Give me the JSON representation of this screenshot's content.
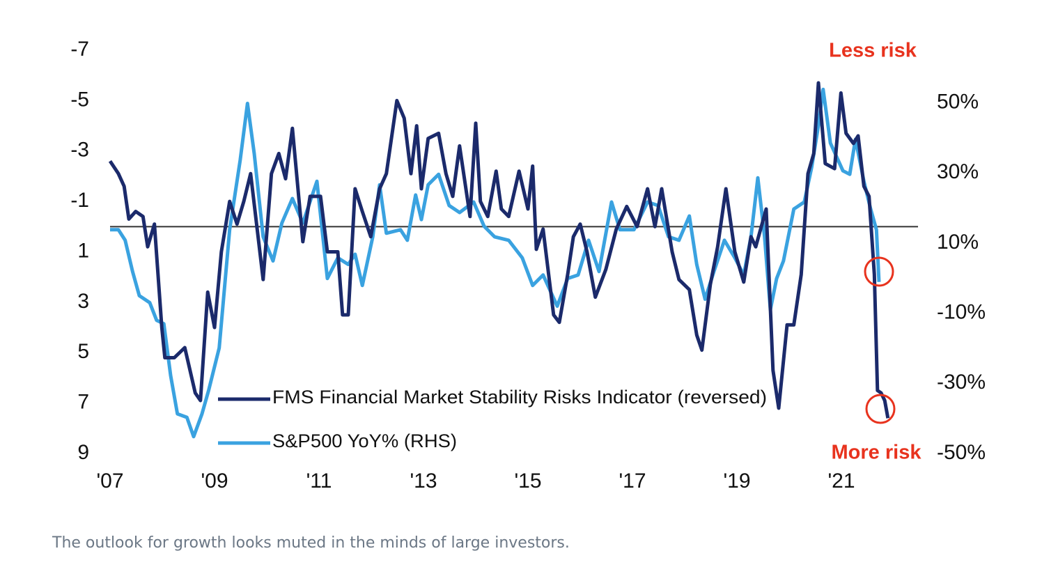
{
  "caption": "The outlook for growth looks muted in the minds of large investors.",
  "chart_data": {
    "type": "line",
    "annotations": [
      "Less risk",
      "More risk"
    ],
    "xlim": [
      2007,
      2022.5
    ],
    "xticks": [
      {
        "value": 2007,
        "label": "'07"
      },
      {
        "value": 2009,
        "label": "'09"
      },
      {
        "value": 2011,
        "label": "'11"
      },
      {
        "value": 2013,
        "label": "'13"
      },
      {
        "value": 2015,
        "label": "'15"
      },
      {
        "value": 2017,
        "label": "'17"
      },
      {
        "value": 2019,
        "label": "'19"
      },
      {
        "value": 2021,
        "label": "'21"
      }
    ],
    "ylim": [
      9,
      -7
    ],
    "yticks": [
      -7,
      -5,
      -3,
      -1,
      1,
      3,
      5,
      7,
      9
    ],
    "y2lim": [
      -50,
      65
    ],
    "y2ticks": [
      {
        "value": 50,
        "label": "50%"
      },
      {
        "value": 30,
        "label": "30%"
      },
      {
        "value": 10,
        "label": "10%"
      },
      {
        "value": -10,
        "label": "-10%"
      },
      {
        "value": -30,
        "label": "-30%"
      },
      {
        "value": -50,
        "label": "-50%"
      }
    ],
    "reference_line": 0,
    "series": [
      {
        "name": "FMS Financial Market Stability Risks Indicator (reversed)",
        "color": "#1b2a6b",
        "x": [
          2007.0,
          2007.16,
          2007.27,
          2007.36,
          2007.49,
          2007.63,
          2007.72,
          2007.85,
          2007.99,
          2008.05,
          2008.23,
          2008.43,
          2008.63,
          2008.73,
          2008.87,
          2009.0,
          2009.13,
          2009.29,
          2009.43,
          2009.56,
          2009.69,
          2009.93,
          2010.09,
          2010.23,
          2010.36,
          2010.49,
          2010.69,
          2010.83,
          2011.03,
          2011.16,
          2011.36,
          2011.45,
          2011.56,
          2011.69,
          2011.83,
          2011.99,
          2012.16,
          2012.29,
          2012.49,
          2012.63,
          2012.76,
          2012.87,
          2012.96,
          2013.09,
          2013.29,
          2013.43,
          2013.56,
          2013.69,
          2013.89,
          2014.0,
          2014.09,
          2014.23,
          2014.39,
          2014.49,
          2014.63,
          2014.83,
          2015.0,
          2015.09,
          2015.16,
          2015.29,
          2015.49,
          2015.6,
          2015.76,
          2015.87,
          2016.0,
          2016.13,
          2016.29,
          2016.49,
          2016.69,
          2016.89,
          2017.09,
          2017.29,
          2017.43,
          2017.56,
          2017.76,
          2017.89,
          2018.09,
          2018.23,
          2018.33,
          2018.49,
          2018.63,
          2018.79,
          2018.96,
          2019.13,
          2019.27,
          2019.36,
          2019.56,
          2019.69,
          2019.8,
          2019.96,
          2020.09,
          2020.23,
          2020.36,
          2020.47,
          2020.56,
          2020.69,
          2020.87,
          2020.99,
          2021.09,
          2021.23,
          2021.32,
          2021.43,
          2021.53,
          2021.63,
          2021.69,
          2021.76,
          2021.83,
          2021.89
        ],
        "values": [
          -2.6,
          -2.1,
          -1.6,
          -0.3,
          -0.6,
          -0.4,
          0.8,
          -0.1,
          4.0,
          5.2,
          5.2,
          4.8,
          6.6,
          6.9,
          2.6,
          4.0,
          1.0,
          -1.0,
          -0.1,
          -1.0,
          -2.1,
          2.1,
          -2.1,
          -2.9,
          -1.9,
          -3.9,
          0.6,
          -1.2,
          -1.2,
          1.0,
          1.0,
          3.5,
          3.5,
          -1.5,
          -0.6,
          0.4,
          -1.5,
          -2.1,
          -5.0,
          -4.3,
          -2.1,
          -4.0,
          -1.5,
          -3.5,
          -3.7,
          -2.1,
          -1.2,
          -3.2,
          -0.4,
          -4.1,
          -1.0,
          -0.4,
          -2.2,
          -0.7,
          -0.4,
          -2.2,
          -0.7,
          -2.4,
          0.9,
          0.1,
          3.5,
          3.8,
          1.9,
          0.4,
          -0.1,
          1.0,
          2.8,
          1.7,
          0.1,
          -0.8,
          0.0,
          -1.5,
          0.0,
          -1.5,
          1.0,
          2.1,
          2.5,
          4.3,
          4.9,
          2.3,
          0.8,
          -1.5,
          1.0,
          2.2,
          0.4,
          0.8,
          -0.7,
          5.7,
          7.2,
          3.9,
          3.9,
          1.9,
          -2.1,
          -2.9,
          -5.7,
          -2.5,
          -2.3,
          -5.3,
          -3.7,
          -3.3,
          -3.6,
          -1.6,
          -1.2,
          1.9,
          6.5,
          6.6,
          6.9,
          7.6
        ]
      },
      {
        "name": "S&P500 YoY% (RHS)",
        "color": "#3aa2e0",
        "axis": "y2",
        "x": [
          2007.0,
          2007.16,
          2007.29,
          2007.43,
          2007.56,
          2007.76,
          2007.89,
          2008.03,
          2008.16,
          2008.29,
          2008.47,
          2008.6,
          2008.76,
          2008.89,
          2009.09,
          2009.29,
          2009.49,
          2009.63,
          2009.76,
          2009.93,
          2010.12,
          2010.29,
          2010.49,
          2010.69,
          2010.96,
          2011.16,
          2011.36,
          2011.56,
          2011.69,
          2011.83,
          2012.03,
          2012.16,
          2012.29,
          2012.56,
          2012.69,
          2012.85,
          2012.96,
          2013.09,
          2013.29,
          2013.49,
          2013.69,
          2013.96,
          2014.16,
          2014.36,
          2014.63,
          2014.89,
          2015.09,
          2015.29,
          2015.56,
          2015.76,
          2015.96,
          2016.16,
          2016.36,
          2016.6,
          2016.76,
          2017.03,
          2017.29,
          2017.49,
          2017.69,
          2017.89,
          2018.09,
          2018.23,
          2018.39,
          2018.56,
          2018.76,
          2018.96,
          2019.13,
          2019.27,
          2019.4,
          2019.53,
          2019.64,
          2019.76,
          2019.89,
          2020.09,
          2020.29,
          2020.43,
          2020.56,
          2020.65,
          2020.79,
          2021.03,
          2021.16,
          2021.27,
          2021.43,
          2021.56,
          2021.67,
          2021.72
        ],
        "values": [
          13.8,
          13.8,
          10.8,
          1.9,
          -5.0,
          -7.0,
          -12.0,
          -13.0,
          -27.8,
          -38.7,
          -39.7,
          -45.2,
          -38.7,
          -31.8,
          -19.9,
          13.8,
          33.6,
          49.8,
          35.5,
          11.8,
          4.9,
          15.7,
          22.7,
          15.7,
          27.6,
          -0.1,
          5.8,
          3.9,
          6.8,
          -2.1,
          11.8,
          26.6,
          12.8,
          13.8,
          10.8,
          23.7,
          16.7,
          26.6,
          29.6,
          20.7,
          18.7,
          21.7,
          14.8,
          11.8,
          10.8,
          5.8,
          -2.1,
          0.9,
          -8.0,
          -0.1,
          0.9,
          10.8,
          1.9,
          21.7,
          13.8,
          13.8,
          21.7,
          20.7,
          11.8,
          10.8,
          17.7,
          3.9,
          -6.0,
          1.9,
          10.8,
          5.8,
          0.9,
          11.8,
          28.6,
          11.8,
          -9.0,
          -0.1,
          4.9,
          19.7,
          21.7,
          31.6,
          43.5,
          53.8,
          38.5,
          30.6,
          29.6,
          39.6,
          27.6,
          19.7,
          13.8,
          -1.1
        ]
      }
    ]
  }
}
